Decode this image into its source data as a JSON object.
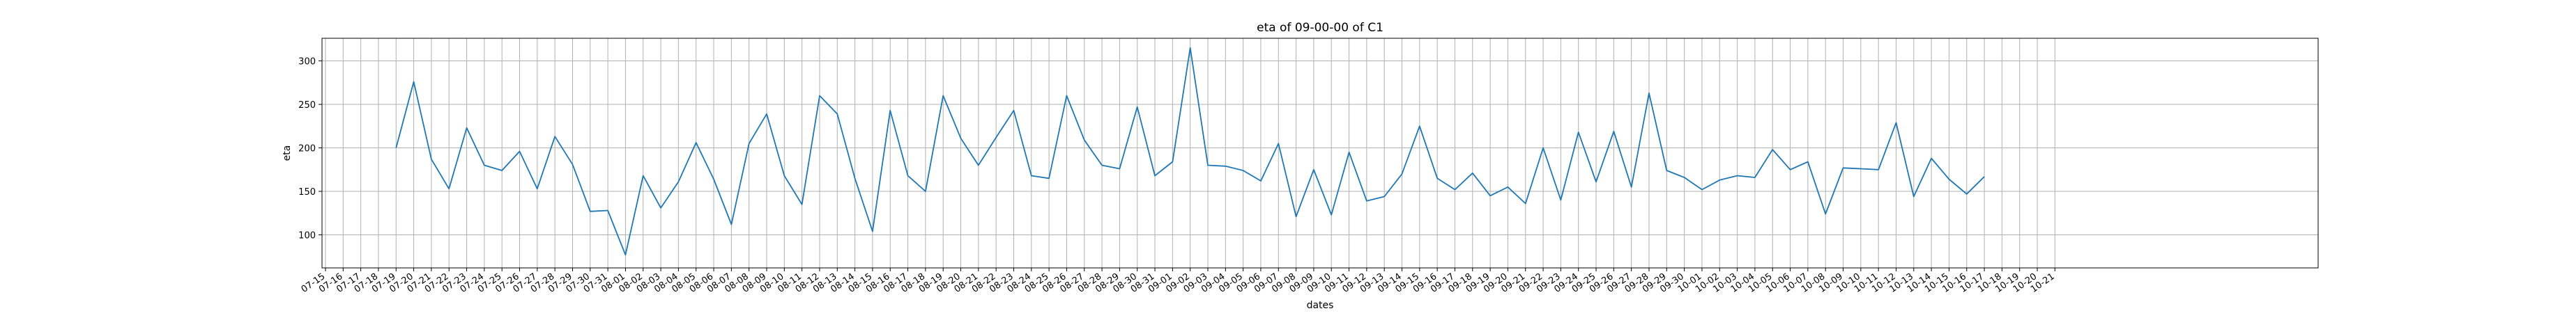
{
  "chart_data": {
    "type": "line",
    "title": "eta of 09-00-00 of C1",
    "xlabel": "dates",
    "ylabel": "eta",
    "ylim": [
      62,
      326
    ],
    "yticks": [
      100,
      150,
      200,
      250,
      300
    ],
    "grid": true,
    "line_color": "#1f77b4",
    "x_tick_labels": [
      "07-15",
      "07-16",
      "07-17",
      "07-18",
      "07-19",
      "07-20",
      "07-21",
      "07-22",
      "07-23",
      "07-24",
      "07-25",
      "07-26",
      "07-27",
      "07-28",
      "07-29",
      "07-30",
      "07-31",
      "08-01",
      "08-02",
      "08-03",
      "08-04",
      "08-05",
      "08-06",
      "08-07",
      "08-08",
      "08-09",
      "08-10",
      "08-11",
      "08-12",
      "08-13",
      "08-14",
      "08-15",
      "08-16",
      "08-17",
      "08-18",
      "08-19",
      "08-20",
      "08-21",
      "08-22",
      "08-23",
      "08-24",
      "08-25",
      "08-26",
      "08-27",
      "08-28",
      "08-29",
      "08-30",
      "08-31",
      "09-01",
      "09-02",
      "09-03",
      "09-04",
      "09-05",
      "09-06",
      "09-07",
      "09-08",
      "09-09",
      "09-10",
      "09-11",
      "09-12",
      "09-13",
      "09-14",
      "09-15",
      "09-16",
      "09-17",
      "09-18",
      "09-19",
      "09-20",
      "09-21",
      "09-22",
      "09-23",
      "09-24",
      "09-25",
      "09-26",
      "09-27",
      "09-28",
      "09-29",
      "09-30",
      "10-01",
      "10-02",
      "10-03",
      "10-04",
      "10-05",
      "10-06",
      "10-07",
      "10-08",
      "10-09",
      "10-10",
      "10-11",
      "10-12",
      "10-13",
      "10-14",
      "10-15",
      "10-16",
      "10-17",
      "10-18",
      "10-19",
      "10-20",
      "10-21"
    ],
    "series": [
      {
        "x": [
          "07-19",
          "07-20",
          "07-21",
          "07-22",
          "07-23",
          "07-24",
          "07-25",
          "07-26",
          "07-27",
          "07-28",
          "07-29",
          "07-30",
          "07-31",
          "08-01",
          "08-02",
          "08-03",
          "08-04",
          "08-05",
          "08-06",
          "08-07",
          "08-08",
          "08-09",
          "08-10",
          "08-11",
          "08-12",
          "08-13",
          "08-14",
          "08-15",
          "08-16",
          "08-17",
          "08-18",
          "08-19",
          "08-20",
          "08-21",
          "08-22",
          "08-23",
          "08-24",
          "08-25",
          "08-26",
          "08-27",
          "08-28",
          "08-29",
          "08-30",
          "08-31",
          "09-01",
          "09-02",
          "09-03",
          "09-04",
          "09-05",
          "09-06",
          "09-07",
          "09-08",
          "09-09",
          "09-10",
          "09-11",
          "09-12",
          "09-13",
          "09-14",
          "09-15",
          "09-16",
          "09-17",
          "09-18",
          "09-19",
          "09-20",
          "09-21",
          "09-22",
          "09-23",
          "09-24",
          "09-25",
          "09-26",
          "09-27",
          "09-28",
          "09-29",
          "09-30",
          "10-01",
          "10-02",
          "10-03",
          "10-04",
          "10-05",
          "10-06",
          "10-07",
          "10-08",
          "10-09",
          "10-10",
          "10-11",
          "10-12",
          "10-13",
          "10-14",
          "10-15",
          "10-16",
          "10-17"
        ],
        "y": [
          200,
          276,
          187,
          153,
          223,
          180,
          174,
          196,
          153,
          213,
          181,
          127,
          128,
          77,
          168,
          131,
          161,
          206,
          164,
          112,
          205,
          239,
          168,
          135,
          260,
          239,
          165,
          104,
          243,
          168,
          150,
          260,
          211,
          180,
          212,
          243,
          168,
          165,
          260,
          209,
          180,
          176,
          247,
          168,
          184,
          315,
          180,
          179,
          174,
          162,
          205,
          121,
          175,
          123,
          195,
          139,
          144,
          170,
          225,
          165,
          152,
          171,
          145,
          155,
          136,
          200,
          140,
          218,
          161,
          219,
          155,
          263,
          174,
          166,
          152,
          163,
          168,
          166,
          198,
          175,
          184,
          124,
          177,
          176,
          175,
          229,
          144,
          188,
          164,
          147,
          167
        ]
      }
    ]
  }
}
